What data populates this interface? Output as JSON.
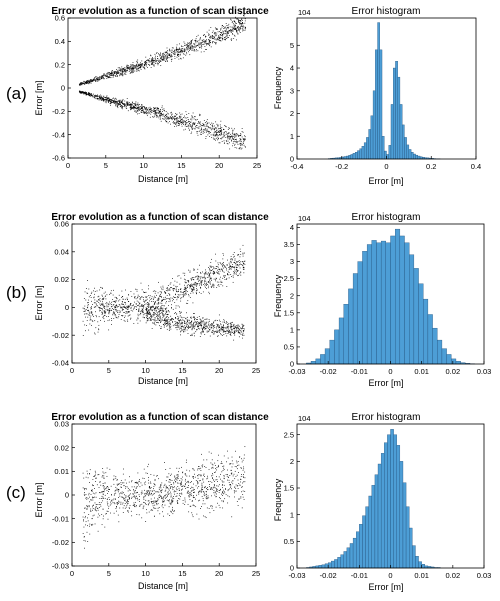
{
  "panel_labels": [
    "(a)",
    "(b)",
    "(c)"
  ],
  "chart_data": [
    {
      "type": "scatter",
      "panel": "(a)",
      "title": "Error evolution as a function of scan distance",
      "xlabel": "Distance [m]",
      "ylabel": "Error [m]",
      "xlim": [
        0,
        25
      ],
      "ylim": [
        -0.6,
        0.6
      ],
      "xticks": [
        0,
        5,
        10,
        15,
        20,
        25
      ],
      "yticks": [
        -0.6,
        -0.4,
        -0.2,
        0,
        0.2,
        0.4,
        0.6
      ],
      "xtick_labels": [
        "0",
        "5",
        "10",
        "15",
        "20",
        "25"
      ],
      "ytick_labels": [
        "-0.6",
        "-0.4",
        "-0.2",
        "0",
        "0.2",
        "0.4",
        "0.6"
      ],
      "grid": false,
      "pattern": "two diverging branches",
      "series": [
        {
          "x": [
            1.5,
            3,
            5,
            7.5,
            10,
            12.5,
            15,
            17.5,
            20,
            22,
            23.5
          ],
          "y": [
            0.03,
            0.06,
            0.1,
            0.15,
            0.2,
            0.26,
            0.32,
            0.39,
            0.46,
            0.52,
            0.56
          ],
          "spread": [
            0.01,
            0.02,
            0.03,
            0.04,
            0.05,
            0.06,
            0.07,
            0.08,
            0.09,
            0.1,
            0.1
          ]
        },
        {
          "x": [
            1.5,
            3,
            5,
            7.5,
            10,
            12.5,
            15,
            17.5,
            20,
            22,
            23.5
          ],
          "y": [
            -0.03,
            -0.06,
            -0.1,
            -0.14,
            -0.18,
            -0.23,
            -0.28,
            -0.33,
            -0.38,
            -0.43,
            -0.46
          ],
          "spread": [
            0.01,
            0.02,
            0.03,
            0.04,
            0.05,
            0.06,
            0.07,
            0.08,
            0.09,
            0.1,
            0.1
          ]
        }
      ],
      "marker_color": "#000000"
    },
    {
      "type": "bar",
      "panel": "(a)",
      "title": "Error histogram",
      "xlabel": "Error  [m]",
      "ylabel": "Frequency",
      "y_multiplier": "10^4",
      "xlim": [
        -0.4,
        0.4
      ],
      "ylim": [
        0,
        6.2
      ],
      "xticks": [
        -0.4,
        -0.2,
        0,
        0.2,
        0.4
      ],
      "yticks": [
        0,
        1,
        2,
        3,
        4,
        5
      ],
      "xtick_labels": [
        "-0.4",
        "-0.2",
        "0",
        "0.2",
        "0.4"
      ],
      "ytick_labels": [
        "0",
        "1",
        "2",
        "3",
        "4",
        "5"
      ],
      "bin_edges": [
        -0.4,
        -0.39,
        -0.38,
        -0.37,
        -0.36,
        -0.35,
        -0.34,
        -0.33,
        -0.32,
        -0.31,
        -0.3,
        -0.29,
        -0.28,
        -0.27,
        -0.26,
        -0.25,
        -0.24,
        -0.23,
        -0.22,
        -0.21,
        -0.2,
        -0.19,
        -0.18,
        -0.17,
        -0.16,
        -0.15,
        -0.14,
        -0.13,
        -0.12,
        -0.11,
        -0.1,
        -0.09,
        -0.08,
        -0.07,
        -0.06,
        -0.05,
        -0.04,
        -0.03,
        -0.02,
        -0.01,
        0,
        0.01,
        0.02,
        0.03,
        0.04,
        0.05,
        0.06,
        0.07,
        0.08,
        0.09,
        0.1,
        0.11,
        0.12,
        0.13,
        0.14,
        0.15,
        0.16,
        0.17,
        0.18,
        0.19,
        0.2,
        0.21,
        0.22,
        0.23,
        0.24,
        0.25,
        0.26,
        0.27,
        0.28,
        0.29,
        0.3,
        0.31,
        0.32,
        0.33,
        0.34,
        0.35,
        0.36,
        0.37,
        0.38,
        0.39,
        0.4
      ],
      "values": [
        0,
        0,
        0,
        0,
        0,
        0,
        0,
        0,
        0,
        0,
        0,
        0,
        0,
        0,
        0.02,
        0.03,
        0.04,
        0.05,
        0.06,
        0.07,
        0.09,
        0.11,
        0.13,
        0.16,
        0.2,
        0.25,
        0.3,
        0.37,
        0.45,
        0.56,
        0.72,
        0.95,
        1.3,
        1.9,
        3.0,
        4.8,
        6.0,
        4.8,
        1.0,
        0.35,
        0.2,
        0.6,
        2.4,
        4.0,
        4.3,
        3.6,
        2.4,
        1.5,
        0.95,
        0.62,
        0.42,
        0.3,
        0.22,
        0.17,
        0.13,
        0.1,
        0.08,
        0.06,
        0.05,
        0.04,
        0.03,
        0.02,
        0.01,
        0.01,
        0,
        0,
        0,
        0,
        0,
        0,
        0,
        0,
        0,
        0,
        0,
        0,
        0,
        0,
        0,
        0
      ],
      "bar_color": "#4d9ed6"
    },
    {
      "type": "scatter",
      "panel": "(b)",
      "title": "Error evolution as a function of scan distance",
      "xlabel": "Distance [m]",
      "ylabel": "Error [m]",
      "xlim": [
        0,
        25
      ],
      "ylim": [
        -0.04,
        0.06
      ],
      "xticks": [
        0,
        5,
        10,
        15,
        20,
        25
      ],
      "yticks": [
        -0.04,
        -0.02,
        0,
        0.02,
        0.04,
        0.06
      ],
      "xtick_labels": [
        "0",
        "5",
        "10",
        "15",
        "20",
        "25"
      ],
      "ytick_labels": [
        "-0.04",
        "-0.02",
        "0",
        "0.02",
        "0.04",
        "0.06"
      ],
      "grid": false,
      "pattern": "dense band near zero, splitting after 10 m",
      "series": [
        {
          "x": [
            1.5,
            2.5,
            4,
            6,
            8,
            10,
            12,
            14,
            16,
            18,
            20,
            22,
            23.5
          ],
          "y": [
            0,
            0,
            0,
            0,
            0,
            0.002,
            0.005,
            0.01,
            0.015,
            0.02,
            0.025,
            0.03,
            0.033
          ],
          "spread": [
            0.022,
            0.02,
            0.016,
            0.01,
            0.012,
            0.012,
            0.012,
            0.012,
            0.012,
            0.012,
            0.012,
            0.012,
            0.012
          ]
        },
        {
          "x": [
            10,
            12,
            14,
            16,
            18,
            20,
            22,
            23.5
          ],
          "y": [
            -0.005,
            -0.008,
            -0.01,
            -0.012,
            -0.013,
            -0.015,
            -0.016,
            -0.017
          ],
          "spread": [
            0.008,
            0.008,
            0.008,
            0.008,
            0.007,
            0.007,
            0.007,
            0.007
          ]
        }
      ],
      "marker_color": "#000000"
    },
    {
      "type": "bar",
      "panel": "(b)",
      "title": "Error histogram",
      "xlabel": "Error [m]",
      "ylabel": "Frequency",
      "y_multiplier": "10^4",
      "xlim": [
        -0.03,
        0.03
      ],
      "ylim": [
        0,
        4.1
      ],
      "xticks": [
        -0.03,
        -0.02,
        -0.01,
        0,
        0.01,
        0.02,
        0.03
      ],
      "yticks": [
        0,
        0.5,
        1,
        1.5,
        2,
        2.5,
        3,
        3.5,
        4
      ],
      "xtick_labels": [
        "-0.03",
        "-0.02",
        "-0.01",
        "0",
        "0.01",
        "0.02",
        "0.03"
      ],
      "ytick_labels": [
        "0",
        "0.5",
        "1",
        "1.5",
        "2",
        "2.5",
        "3",
        "3.5",
        "4"
      ],
      "bin_edges": [
        -0.027,
        -0.0255,
        -0.024,
        -0.0225,
        -0.021,
        -0.0195,
        -0.018,
        -0.0165,
        -0.015,
        -0.0135,
        -0.012,
        -0.0105,
        -0.009,
        -0.0075,
        -0.006,
        -0.0045,
        -0.003,
        -0.0015,
        0,
        0.0015,
        0.003,
        0.0045,
        0.006,
        0.0075,
        0.009,
        0.0105,
        0.012,
        0.0135,
        0.015,
        0.0165,
        0.018,
        0.0195,
        0.021,
        0.0225,
        0.024,
        0.0255,
        0.027
      ],
      "values": [
        0.03,
        0.08,
        0.15,
        0.28,
        0.45,
        0.7,
        1.0,
        1.35,
        1.75,
        2.2,
        2.65,
        3.0,
        3.3,
        3.5,
        3.62,
        3.55,
        3.6,
        3.55,
        3.75,
        3.95,
        3.75,
        3.55,
        3.2,
        2.8,
        2.35,
        1.9,
        1.45,
        1.05,
        0.7,
        0.45,
        0.28,
        0.15,
        0.08,
        0.04,
        0.02,
        0.01
      ],
      "bar_color": "#4d9ed6"
    },
    {
      "type": "scatter",
      "panel": "(c)",
      "title": "Error evolution as a function of scan distance",
      "xlabel": "Distance [m]",
      "ylabel": "Error [m]",
      "xlim": [
        0,
        25
      ],
      "ylim": [
        -0.03,
        0.03
      ],
      "xticks": [
        0,
        5,
        10,
        15,
        20,
        25
      ],
      "yticks": [
        -0.03,
        -0.02,
        -0.01,
        0,
        0.01,
        0.02,
        0.03
      ],
      "xtick_labels": [
        "0",
        "5",
        "10",
        "15",
        "20",
        "25"
      ],
      "ytick_labels": [
        "-0.03",
        "-0.02",
        "-0.01",
        "0",
        "0.01",
        "0.02",
        "0.03"
      ],
      "grid": false,
      "pattern": "dense band near zero, thinning with distance",
      "series": [
        {
          "x": [
            1.5,
            2.5,
            4,
            6,
            8,
            10,
            12,
            14,
            16,
            18,
            20,
            22,
            23.5
          ],
          "y": [
            -0.005,
            -0.003,
            0,
            0,
            0,
            0,
            0.001,
            0.002,
            0.003,
            0.004,
            0.005,
            0.006,
            0.007
          ],
          "spread": [
            0.018,
            0.016,
            0.012,
            0.01,
            0.01,
            0.01,
            0.01,
            0.011,
            0.012,
            0.013,
            0.014,
            0.014,
            0.014
          ]
        }
      ],
      "marker_color": "#000000"
    },
    {
      "type": "bar",
      "panel": "(c)",
      "title": "Error histogram",
      "xlabel": "Error [m]",
      "ylabel": "Frequency",
      "y_multiplier": "10^4",
      "xlim": [
        -0.03,
        0.03
      ],
      "ylim": [
        0,
        2.7
      ],
      "xticks": [
        -0.03,
        -0.02,
        -0.01,
        0,
        0.01,
        0.02,
        0.03
      ],
      "yticks": [
        0,
        0.5,
        1,
        1.5,
        2,
        2.5
      ],
      "xtick_labels": [
        "-0.03",
        "-0.02",
        "-0.01",
        "0",
        "0.01",
        "0.02",
        "0.03"
      ],
      "ytick_labels": [
        "0",
        "0.5",
        "1",
        "1.5",
        "2",
        "2.5"
      ],
      "bin_edges": [
        -0.027,
        -0.026,
        -0.025,
        -0.024,
        -0.023,
        -0.022,
        -0.021,
        -0.02,
        -0.019,
        -0.018,
        -0.017,
        -0.016,
        -0.015,
        -0.014,
        -0.013,
        -0.012,
        -0.011,
        -0.01,
        -0.009,
        -0.008,
        -0.007,
        -0.006,
        -0.005,
        -0.004,
        -0.003,
        -0.002,
        -0.001,
        0,
        0.001,
        0.002,
        0.003,
        0.004,
        0.005,
        0.006,
        0.007,
        0.008,
        0.009,
        0.01,
        0.011,
        0.012,
        0.013,
        0.014,
        0.015,
        0.016
      ],
      "values": [
        0.01,
        0.02,
        0.03,
        0.04,
        0.05,
        0.06,
        0.08,
        0.1,
        0.13,
        0.16,
        0.2,
        0.25,
        0.31,
        0.38,
        0.46,
        0.56,
        0.68,
        0.82,
        0.98,
        1.15,
        1.35,
        1.55,
        1.75,
        1.95,
        2.15,
        2.35,
        2.5,
        2.6,
        2.5,
        2.3,
        2.0,
        1.6,
        1.15,
        0.75,
        0.42,
        0.22,
        0.12,
        0.07,
        0.04,
        0.03,
        0.02,
        0.01,
        0.01
      ],
      "bar_color": "#4d9ed6"
    }
  ]
}
